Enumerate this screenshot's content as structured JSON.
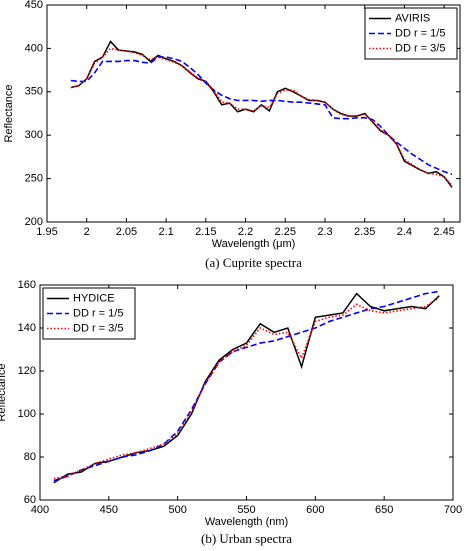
{
  "chart_data": [
    {
      "type": "line",
      "caption": "(a) Cuprite spectra",
      "xlabel": "Wavelength (μm)",
      "ylabel": "Reflectance",
      "xlim": [
        1.95,
        2.47
      ],
      "xticks": [
        1.95,
        2,
        2.05,
        2.1,
        2.15,
        2.2,
        2.25,
        2.3,
        2.35,
        2.4,
        2.45
      ],
      "ylim": [
        200,
        450
      ],
      "yticks": [
        200,
        250,
        300,
        350,
        400,
        450
      ],
      "legend": "upper right",
      "x": [
        1.98,
        1.99,
        2.0,
        2.01,
        2.02,
        2.03,
        2.04,
        2.05,
        2.06,
        2.07,
        2.08,
        2.09,
        2.1,
        2.11,
        2.12,
        2.13,
        2.14,
        2.15,
        2.16,
        2.17,
        2.18,
        2.19,
        2.2,
        2.21,
        2.22,
        2.23,
        2.24,
        2.25,
        2.26,
        2.27,
        2.28,
        2.29,
        2.3,
        2.31,
        2.32,
        2.33,
        2.34,
        2.35,
        2.36,
        2.37,
        2.38,
        2.39,
        2.4,
        2.41,
        2.42,
        2.43,
        2.44,
        2.45,
        2.46
      ],
      "series": [
        {
          "name": "AVIRIS",
          "color": "#000000",
          "linestyle": "solid",
          "values": [
            355,
            357,
            365,
            385,
            390,
            408,
            398,
            397,
            396,
            393,
            385,
            392,
            388,
            385,
            380,
            372,
            365,
            362,
            350,
            335,
            337,
            327,
            330,
            327,
            335,
            328,
            350,
            354,
            350,
            345,
            340,
            340,
            338,
            330,
            325,
            322,
            322,
            325,
            315,
            305,
            300,
            290,
            270,
            265,
            260,
            256,
            258,
            252,
            240
          ]
        },
        {
          "name": "DD r = 1/5",
          "color": "#0000ff",
          "linestyle": "dashed",
          "values": [
            363,
            362,
            362,
            372,
            385,
            385,
            385,
            386,
            386,
            384,
            383,
            390,
            390,
            388,
            385,
            378,
            370,
            360,
            352,
            346,
            342,
            340,
            340,
            340,
            339,
            340,
            340,
            339,
            338,
            338,
            337,
            336,
            335,
            320,
            319,
            319,
            320,
            320,
            318,
            310,
            300,
            292,
            285,
            278,
            272,
            266,
            262,
            258,
            255
          ]
        },
        {
          "name": "DD r = 3/5",
          "color": "#ff0000",
          "linestyle": "dotted",
          "values": [
            355,
            357,
            365,
            383,
            390,
            400,
            398,
            397,
            395,
            392,
            387,
            390,
            387,
            384,
            380,
            373,
            366,
            362,
            352,
            338,
            337,
            330,
            330,
            328,
            334,
            332,
            348,
            352,
            352,
            345,
            341,
            340,
            338,
            330,
            324,
            322,
            322,
            324,
            316,
            306,
            300,
            290,
            272,
            266,
            260,
            256,
            255,
            252,
            242
          ]
        }
      ]
    },
    {
      "type": "line",
      "caption": "(b) Urban spectra",
      "xlabel": "Wavelength (nm)",
      "ylabel": "Reflectance",
      "xlim": [
        400,
        700
      ],
      "xticks": [
        400,
        450,
        500,
        550,
        600,
        650,
        700
      ],
      "ylim": [
        60,
        160
      ],
      "yticks": [
        60,
        80,
        100,
        120,
        140,
        160
      ],
      "legend": "upper left",
      "x": [
        410,
        420,
        430,
        440,
        450,
        460,
        470,
        480,
        490,
        500,
        510,
        520,
        530,
        540,
        550,
        560,
        570,
        580,
        590,
        600,
        610,
        620,
        630,
        640,
        650,
        660,
        670,
        680,
        690
      ],
      "series": [
        {
          "name": "HYDICE",
          "color": "#000000",
          "linestyle": "solid",
          "values": [
            68,
            72,
            73,
            77,
            78,
            80,
            82,
            83,
            85,
            90,
            100,
            115,
            125,
            130,
            133,
            142,
            138,
            140,
            122,
            145,
            146,
            147,
            156,
            150,
            148,
            149,
            150,
            149,
            155
          ]
        },
        {
          "name": "DD r = 1/5",
          "color": "#0000ff",
          "linestyle": "dashed",
          "values": [
            69,
            71,
            74,
            76,
            78,
            80,
            81,
            83,
            86,
            92,
            102,
            114,
            124,
            129,
            131,
            133,
            134,
            136,
            138,
            140,
            143,
            145,
            147,
            149,
            150,
            152,
            154,
            156,
            157
          ]
        },
        {
          "name": "DD r = 3/5",
          "color": "#ff0000",
          "linestyle": "dotted",
          "values": [
            70,
            71,
            74,
            77,
            79,
            81,
            82,
            84,
            86,
            91,
            101,
            114,
            124,
            129,
            132,
            140,
            137,
            138,
            126,
            143,
            145,
            146,
            151,
            148,
            147,
            148,
            149,
            150,
            154
          ]
        }
      ]
    }
  ]
}
